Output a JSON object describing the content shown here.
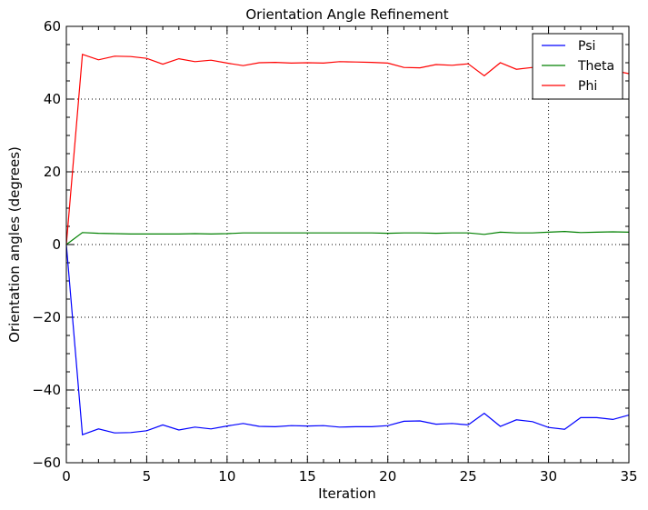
{
  "chart_data": {
    "type": "line",
    "title": "Orientation Angle Refinement",
    "xlabel": "Iteration",
    "ylabel": "Orientation angles (degrees)",
    "xlim": [
      0,
      35
    ],
    "ylim": [
      -60,
      60
    ],
    "x_ticks": [
      0,
      5,
      10,
      15,
      20,
      25,
      30,
      35
    ],
    "y_ticks": [
      -60,
      -40,
      -20,
      0,
      20,
      40,
      60
    ],
    "x_tick_labels": [
      "0",
      "5",
      "10",
      "15",
      "20",
      "25",
      "30",
      "35"
    ],
    "y_tick_labels": [
      "−60",
      "−40",
      "−20",
      "0",
      "20",
      "40",
      "60"
    ],
    "grid": true,
    "legend_position": "top-right",
    "x": [
      0,
      1,
      2,
      3,
      4,
      5,
      6,
      7,
      8,
      9,
      10,
      11,
      12,
      13,
      14,
      15,
      16,
      17,
      18,
      19,
      20,
      21,
      22,
      23,
      24,
      25,
      26,
      27,
      28,
      29,
      30,
      31,
      32,
      33,
      34,
      35
    ],
    "series": [
      {
        "name": "Psi",
        "color": "#0000ff",
        "values": [
          0,
          -52.3,
          -50.7,
          -51.8,
          -51.7,
          -51.2,
          -49.6,
          -51.0,
          -50.2,
          -50.7,
          -49.9,
          -49.2,
          -50.0,
          -50.1,
          -49.8,
          -49.9,
          -49.8,
          -50.2,
          -50.1,
          -50.1,
          -49.8,
          -48.6,
          -48.5,
          -49.4,
          -49.2,
          -49.6,
          -46.4,
          -50.0,
          -48.2,
          -48.7,
          -50.3,
          -50.8,
          -47.6,
          -47.6,
          -48.1,
          -46.9
        ]
      },
      {
        "name": "Theta",
        "color": "#008000",
        "values": [
          0,
          3.3,
          3.1,
          3.0,
          2.9,
          2.9,
          2.9,
          2.9,
          3.0,
          2.9,
          3.0,
          3.2,
          3.2,
          3.2,
          3.2,
          3.2,
          3.2,
          3.2,
          3.2,
          3.2,
          3.1,
          3.2,
          3.2,
          3.1,
          3.2,
          3.2,
          2.8,
          3.4,
          3.2,
          3.2,
          3.4,
          3.6,
          3.3,
          3.4,
          3.5,
          3.4
        ]
      },
      {
        "name": "Phi",
        "color": "#ff0000",
        "values": [
          0,
          52.3,
          50.8,
          51.8,
          51.7,
          51.2,
          49.6,
          51.1,
          50.3,
          50.7,
          49.9,
          49.2,
          50.0,
          50.1,
          49.9,
          50.0,
          49.9,
          50.3,
          50.2,
          50.1,
          49.9,
          48.7,
          48.6,
          49.5,
          49.3,
          49.7,
          46.4,
          50.0,
          48.2,
          48.7,
          49.5,
          49.5,
          48.7,
          48.9,
          47.9,
          47.0
        ]
      }
    ]
  }
}
